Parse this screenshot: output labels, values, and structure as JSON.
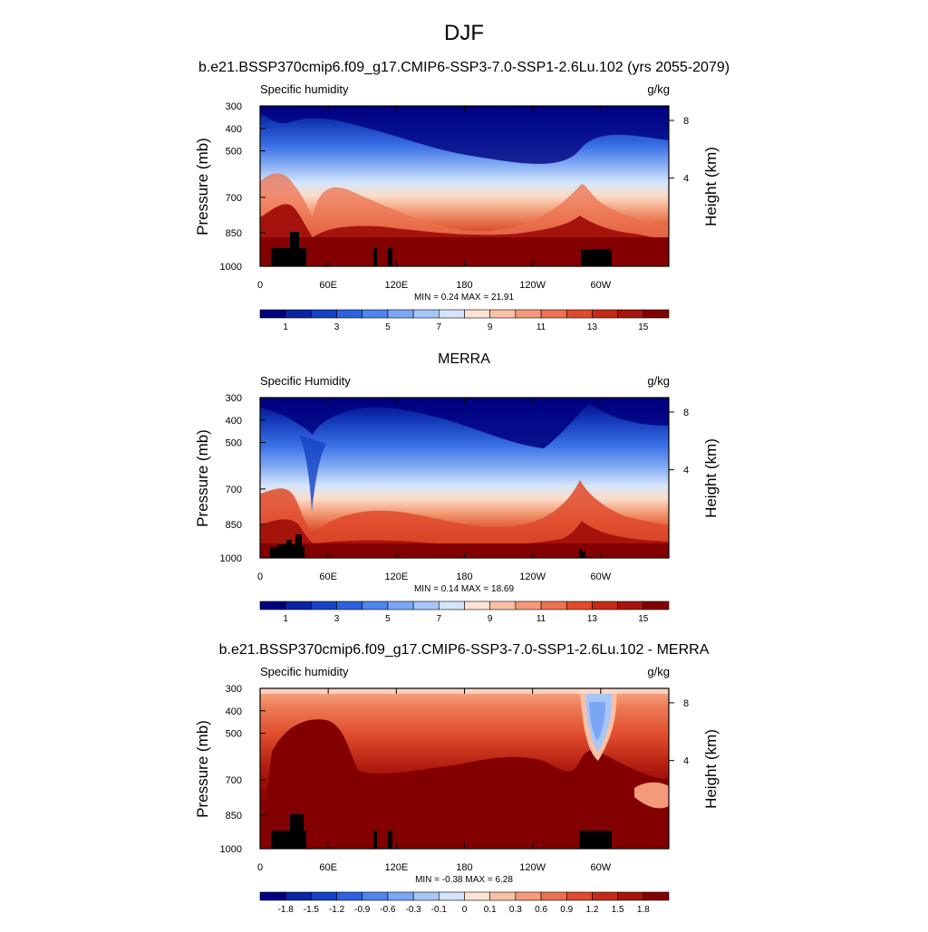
{
  "title": "DJF",
  "chart_data": [
    {
      "type": "heatmap",
      "title": "b.e21.BSSP370cmip6.f09_g17.CMIP6-SSP3-7.0-SSP1-2.6Lu.102 (yrs 2055-2079)",
      "left_label": "Specific humidity",
      "right_label": "g/kg",
      "ylabel": "Pressure (mb)",
      "y2label": "Height (km)",
      "yticks": [
        "300",
        "400",
        "500",
        "700",
        "850",
        "1000"
      ],
      "y2ticks": [
        "8",
        "4"
      ],
      "xticks": [
        "0",
        "60E",
        "120E",
        "180",
        "120W",
        "60W"
      ],
      "stats": "MIN =  0.24  MAX =  21.91",
      "colorbar_labels": [
        "1",
        "3",
        "5",
        "7",
        "9",
        "11",
        "13",
        "15"
      ],
      "colors": [
        "#00007f",
        "#0a24a4",
        "#1542c4",
        "#2c61e0",
        "#4f85ee",
        "#7aa6f4",
        "#a7c6f8",
        "#d3e4fb",
        "#fde3d4",
        "#f9c0a5",
        "#f49a78",
        "#ec7150",
        "#df4a2c",
        "#c62a17",
        "#a5140c",
        "#820000"
      ]
    },
    {
      "type": "heatmap",
      "title": "MERRA",
      "left_label": "Specific Humidity",
      "right_label": "g/kg",
      "ylabel": "Pressure (mb)",
      "y2label": "Height (km)",
      "yticks": [
        "300",
        "400",
        "500",
        "700",
        "850",
        "1000"
      ],
      "y2ticks": [
        "8",
        "4"
      ],
      "xticks": [
        "0",
        "60E",
        "120E",
        "180",
        "120W",
        "60W"
      ],
      "stats": "MIN =  0.14  MAX =  18.69",
      "colorbar_labels": [
        "1",
        "3",
        "5",
        "7",
        "9",
        "11",
        "13",
        "15"
      ],
      "colors": [
        "#00007f",
        "#0a24a4",
        "#1542c4",
        "#2c61e0",
        "#4f85ee",
        "#7aa6f4",
        "#a7c6f8",
        "#d3e4fb",
        "#fde3d4",
        "#f9c0a5",
        "#f49a78",
        "#ec7150",
        "#df4a2c",
        "#c62a17",
        "#a5140c",
        "#820000"
      ]
    },
    {
      "type": "heatmap",
      "title": "b.e21.BSSP370cmip6.f09_g17.CMIP6-SSP3-7.0-SSP1-2.6Lu.102 - MERRA",
      "left_label": "Specific humidity",
      "right_label": "g/kg",
      "ylabel": "Pressure (mb)",
      "y2label": "Height (km)",
      "yticks": [
        "300",
        "400",
        "500",
        "700",
        "850",
        "1000"
      ],
      "y2ticks": [
        "8",
        "4"
      ],
      "xticks": [
        "0",
        "60E",
        "120E",
        "180",
        "120W",
        "60W"
      ],
      "stats": "MIN = -0.38  MAX =  6.28",
      "colorbar_labels": [
        "-1.8",
        "-1.5",
        "-1.2",
        "-0.9",
        "-0.6",
        "-0.3",
        "-0.1",
        "0",
        "0.1",
        "0.3",
        "0.6",
        "0.9",
        "1.2",
        "1.5",
        "1.8"
      ],
      "colors": [
        "#00007f",
        "#0a24a4",
        "#1542c4",
        "#2c61e0",
        "#4f85ee",
        "#7aa6f4",
        "#a7c6f8",
        "#d3e4fb",
        "#fde3d4",
        "#f9c0a5",
        "#f49a78",
        "#ec7150",
        "#df4a2c",
        "#c62a17",
        "#a5140c",
        "#820000"
      ]
    }
  ]
}
